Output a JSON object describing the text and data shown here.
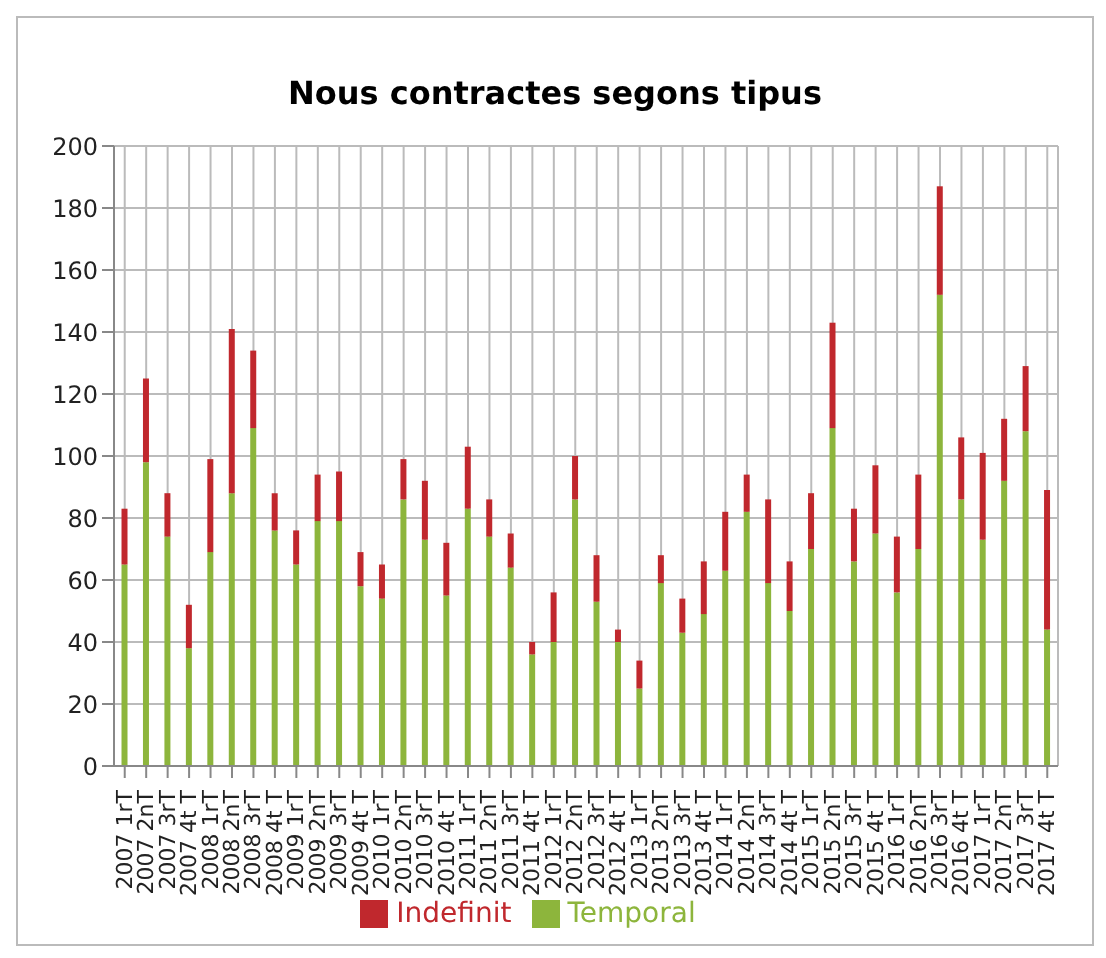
{
  "chart_data": {
    "type": "bar",
    "title": "Nous contractes segons tipus",
    "categories": [
      "2007 1rT",
      "2007 2nT",
      "2007 3rT",
      "2007 4t T",
      "2008 1rT",
      "2008 2nT",
      "2008 3rT",
      "2008 4t T",
      "2009 1rT",
      "2009 2nT",
      "2009 3rT",
      "2009 4t T",
      "2010 1rT",
      "2010 2nT",
      "2010 3rT",
      "2010 4t T",
      "2011 1rT",
      "2011 2nT",
      "2011 3rT",
      "2011 4t T",
      "2012 1rT",
      "2012 2nT",
      "2012 3rT",
      "2012 4t T",
      "2013 1rT",
      "2013 2nT",
      "2013 3rT",
      "2013 4t T",
      "2014 1rT",
      "2014 2nT",
      "2014 3rT",
      "2014 4t T",
      "2015 1rT",
      "2015 2nT",
      "2015 3rT",
      "2015 4t T",
      "2016 1rT",
      "2016 2nT",
      "2016 3rT",
      "2016 4t T",
      "2017 1rT",
      "2017 2nT",
      "2017 3rT",
      "2017 4t T"
    ],
    "series": [
      {
        "name": "Temporal",
        "color": "#8db53c",
        "values": [
          65,
          98,
          74,
          38,
          69,
          88,
          109,
          76,
          65,
          79,
          79,
          58,
          54,
          86,
          73,
          55,
          83,
          74,
          64,
          36,
          40,
          86,
          53,
          40,
          25,
          59,
          43,
          49,
          63,
          82,
          59,
          50,
          70,
          109,
          66,
          75,
          56,
          70,
          152,
          86,
          73,
          92,
          108,
          44
        ]
      },
      {
        "name": "Indefinit",
        "color": "#c0282d",
        "values": [
          18,
          27,
          14,
          14,
          30,
          53,
          25,
          12,
          11,
          15,
          16,
          11,
          11,
          13,
          19,
          17,
          20,
          12,
          11,
          4,
          16,
          14,
          15,
          4,
          9,
          9,
          11,
          17,
          19,
          12,
          27,
          16,
          18,
          34,
          17,
          22,
          18,
          24,
          35,
          20,
          28,
          20,
          21,
          45
        ]
      }
    ],
    "stacked": true,
    "ylim": [
      0,
      200
    ],
    "yticks": [
      0,
      20,
      40,
      60,
      80,
      100,
      120,
      140,
      160,
      180,
      200
    ],
    "grid": true,
    "legend": "bottom"
  }
}
